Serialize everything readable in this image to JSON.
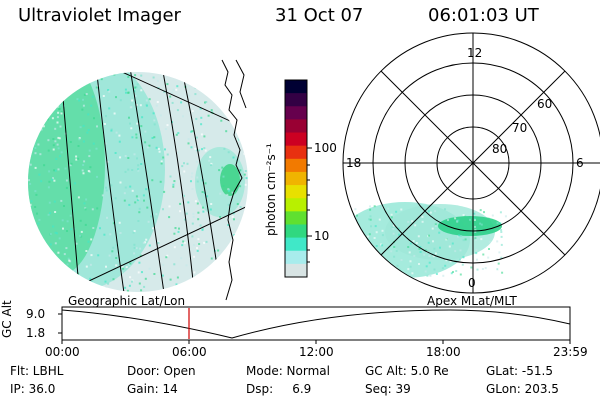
{
  "header": {
    "instrument": "Ultraviolet Imager",
    "date": "31 Oct 07",
    "time": "06:01:03 UT"
  },
  "colorbar": {
    "unit_label": "photon cm⁻²s⁻¹",
    "ticks": [
      "100",
      "10"
    ],
    "colors": [
      "#000033",
      "#330044",
      "#66004d",
      "#990033",
      "#cc0022",
      "#e83010",
      "#f27a00",
      "#f0b400",
      "#e8e000",
      "#b8f000",
      "#60e030",
      "#30d880",
      "#40e8c8",
      "#a8ecec",
      "#d8e4e4"
    ]
  },
  "polar_plot": {
    "mlt_labels": [
      "12",
      "18",
      "6",
      "0"
    ],
    "lat_labels": [
      "60",
      "70",
      "80"
    ]
  },
  "map_labels": {
    "left": "Geographic Lat/Lon",
    "right": "Apex MLat/MLT"
  },
  "altitude_plot": {
    "ylabel": "GC Alt",
    "y_ticks": [
      "9.0",
      "1.8"
    ],
    "x_ticks": [
      "00:00",
      "06:00",
      "12:00",
      "18:00",
      "23:59"
    ],
    "marker_time": "06:01:03",
    "marker_color": "#d00000"
  },
  "info_rows": [
    [
      {
        "k": "Flt: LBHL"
      },
      {
        "k": "Door: Open"
      },
      {
        "k": "Mode: Normal"
      },
      {
        "k": "GC Alt: 5.0 Re"
      },
      {
        "k": "GLat: -51.5"
      }
    ],
    [
      {
        "k": "IP: 36.0"
      },
      {
        "k": "Gain: 14"
      },
      {
        "k": "Dsp:     6.9"
      },
      {
        "k": "Seq: 39"
      },
      {
        "k": "GLon: 203.5"
      }
    ]
  ]
}
